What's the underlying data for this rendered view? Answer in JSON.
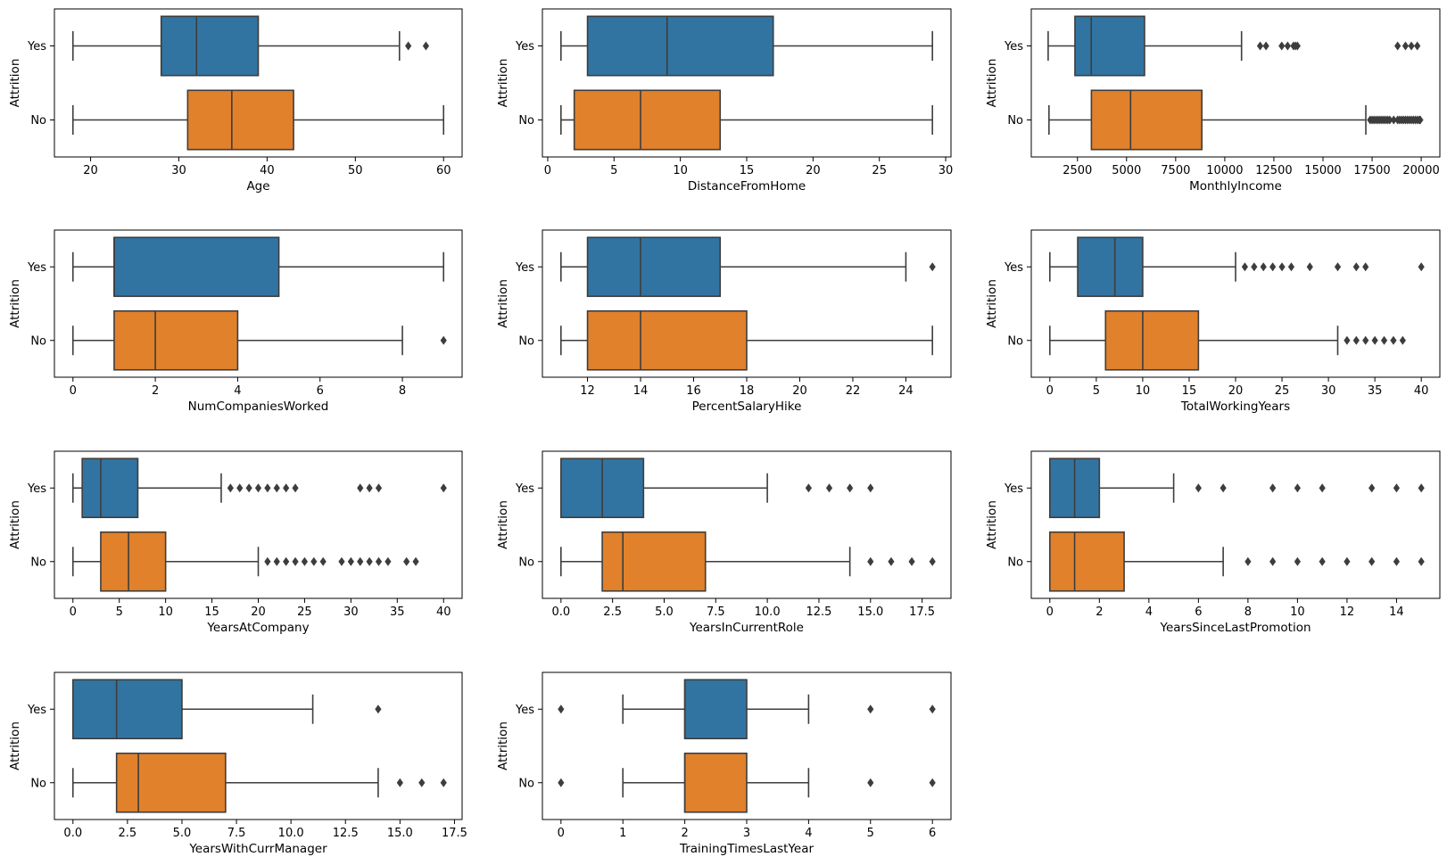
{
  "colors": {
    "yes": "#3274a1",
    "no": "#e1812c",
    "line": "#3d3d3d"
  },
  "chart_data": [
    {
      "type": "box",
      "orientation": "horizontal",
      "xlabel": "Age",
      "ylabel": "Attrition",
      "categories": [
        "Yes",
        "No"
      ],
      "xlim": [
        15.9,
        62.1
      ],
      "xticks": [
        20,
        30,
        40,
        50,
        60
      ],
      "series": [
        {
          "category": "Yes",
          "whisker_low": 18,
          "q1": 28,
          "median": 32,
          "q3": 39,
          "whisker_high": 55,
          "outliers": [
            56,
            58
          ]
        },
        {
          "category": "No",
          "whisker_low": 18,
          "q1": 31,
          "median": 36,
          "q3": 43,
          "whisker_high": 60,
          "outliers": []
        }
      ]
    },
    {
      "type": "box",
      "orientation": "horizontal",
      "xlabel": "DistanceFromHome",
      "ylabel": "Attrition",
      "categories": [
        "Yes",
        "No"
      ],
      "xlim": [
        -0.4,
        30.4
      ],
      "xticks": [
        0,
        5,
        10,
        15,
        20,
        25,
        30
      ],
      "series": [
        {
          "category": "Yes",
          "whisker_low": 1,
          "q1": 3,
          "median": 9,
          "q3": 17,
          "whisker_high": 29,
          "outliers": []
        },
        {
          "category": "No",
          "whisker_low": 1,
          "q1": 2,
          "median": 7,
          "q3": 13,
          "whisker_high": 29,
          "outliers": []
        }
      ]
    },
    {
      "type": "box",
      "orientation": "horizontal",
      "xlabel": "MonthlyIncome",
      "ylabel": "Attrition",
      "categories": [
        "Yes",
        "No"
      ],
      "xlim": [
        150,
        20950
      ],
      "xticks": [
        2500,
        5000,
        7500,
        10000,
        12500,
        15000,
        17500,
        20000
      ],
      "series": [
        {
          "category": "Yes",
          "whisker_low": 1009,
          "q1": 2373,
          "median": 3202,
          "q3": 5916,
          "whisker_high": 10854,
          "outliers": [
            11800,
            12100,
            12900,
            13200,
            13500,
            13600,
            13700,
            18800,
            19200,
            19500,
            19800
          ]
        },
        {
          "category": "No",
          "whisker_low": 1051,
          "q1": 3211,
          "median": 5204,
          "q3": 8834,
          "whisker_high": 17181,
          "outliers": [
            17400,
            17500,
            17600,
            17700,
            17800,
            17900,
            18000,
            18100,
            18200,
            18300,
            18400,
            18600,
            18800,
            18900,
            19000,
            19100,
            19200,
            19300,
            19400,
            19500,
            19600,
            19700,
            19800,
            19900,
            19950
          ]
        }
      ]
    },
    {
      "type": "box",
      "orientation": "horizontal",
      "xlabel": "NumCompaniesWorked",
      "ylabel": "Attrition",
      "categories": [
        "Yes",
        "No"
      ],
      "xlim": [
        -0.45,
        9.45
      ],
      "xticks": [
        0,
        2,
        4,
        6,
        8
      ],
      "series": [
        {
          "category": "Yes",
          "whisker_low": 0,
          "q1": 1,
          "median": 1,
          "q3": 5,
          "whisker_high": 9,
          "outliers": []
        },
        {
          "category": "No",
          "whisker_low": 0,
          "q1": 1,
          "median": 2,
          "q3": 4,
          "whisker_high": 8,
          "outliers": [
            9
          ]
        }
      ]
    },
    {
      "type": "box",
      "orientation": "horizontal",
      "xlabel": "PercentSalaryHike",
      "ylabel": "Attrition",
      "categories": [
        "Yes",
        "No"
      ],
      "xlim": [
        10.3,
        25.7
      ],
      "xticks": [
        12,
        14,
        16,
        18,
        20,
        22,
        24
      ],
      "series": [
        {
          "category": "Yes",
          "whisker_low": 11,
          "q1": 12,
          "median": 14,
          "q3": 17,
          "whisker_high": 24,
          "outliers": [
            25
          ]
        },
        {
          "category": "No",
          "whisker_low": 11,
          "q1": 12,
          "median": 14,
          "q3": 18,
          "whisker_high": 25,
          "outliers": []
        }
      ]
    },
    {
      "type": "box",
      "orientation": "horizontal",
      "xlabel": "TotalWorkingYears",
      "ylabel": "Attrition",
      "categories": [
        "Yes",
        "No"
      ],
      "xlim": [
        -2,
        42
      ],
      "xticks": [
        0,
        5,
        10,
        15,
        20,
        25,
        30,
        35,
        40
      ],
      "series": [
        {
          "category": "Yes",
          "whisker_low": 0,
          "q1": 3,
          "median": 7,
          "q3": 10,
          "whisker_high": 20,
          "outliers": [
            21,
            22,
            23,
            24,
            25,
            26,
            28,
            31,
            33,
            34,
            40
          ]
        },
        {
          "category": "No",
          "whisker_low": 0,
          "q1": 6,
          "median": 10,
          "q3": 16,
          "whisker_high": 31,
          "outliers": [
            32,
            33,
            34,
            35,
            36,
            37,
            38
          ]
        }
      ]
    },
    {
      "type": "box",
      "orientation": "horizontal",
      "xlabel": "YearsAtCompany",
      "ylabel": "Attrition",
      "categories": [
        "Yes",
        "No"
      ],
      "xlim": [
        -2,
        42
      ],
      "xticks": [
        0,
        5,
        10,
        15,
        20,
        25,
        30,
        35,
        40
      ],
      "series": [
        {
          "category": "Yes",
          "whisker_low": 0,
          "q1": 1,
          "median": 3,
          "q3": 7,
          "whisker_high": 16,
          "outliers": [
            17,
            18,
            19,
            20,
            21,
            22,
            23,
            24,
            31,
            32,
            33,
            40
          ]
        },
        {
          "category": "No",
          "whisker_low": 0,
          "q1": 3,
          "median": 6,
          "q3": 10,
          "whisker_high": 20,
          "outliers": [
            21,
            22,
            23,
            24,
            25,
            26,
            27,
            29,
            30,
            31,
            32,
            33,
            34,
            36,
            37
          ]
        }
      ]
    },
    {
      "type": "box",
      "orientation": "horizontal",
      "xlabel": "YearsInCurrentRole",
      "ylabel": "Attrition",
      "categories": [
        "Yes",
        "No"
      ],
      "xlim": [
        -0.9,
        18.9
      ],
      "xticks": [
        0.0,
        2.5,
        5.0,
        7.5,
        10.0,
        12.5,
        15.0,
        17.5
      ],
      "series": [
        {
          "category": "Yes",
          "whisker_low": 0,
          "q1": 0,
          "median": 2,
          "q3": 4,
          "whisker_high": 10,
          "outliers": [
            12,
            13,
            14,
            15
          ]
        },
        {
          "category": "No",
          "whisker_low": 0,
          "q1": 2,
          "median": 3,
          "q3": 7,
          "whisker_high": 14,
          "outliers": [
            15,
            16,
            17,
            18
          ]
        }
      ]
    },
    {
      "type": "box",
      "orientation": "horizontal",
      "xlabel": "YearsSinceLastPromotion",
      "ylabel": "Attrition",
      "categories": [
        "Yes",
        "No"
      ],
      "xlim": [
        -0.75,
        15.75
      ],
      "xticks": [
        0,
        2,
        4,
        6,
        8,
        10,
        12,
        14
      ],
      "series": [
        {
          "category": "Yes",
          "whisker_low": 0,
          "q1": 0,
          "median": 1,
          "q3": 2,
          "whisker_high": 5,
          "outliers": [
            6,
            7,
            9,
            10,
            11,
            13,
            14,
            15
          ]
        },
        {
          "category": "No",
          "whisker_low": 0,
          "q1": 0,
          "median": 1,
          "q3": 3,
          "whisker_high": 7,
          "outliers": [
            8,
            9,
            10,
            11,
            12,
            13,
            14,
            15
          ]
        }
      ]
    },
    {
      "type": "box",
      "orientation": "horizontal",
      "xlabel": "YearsWithCurrManager",
      "ylabel": "Attrition",
      "categories": [
        "Yes",
        "No"
      ],
      "xlim": [
        -0.85,
        17.85
      ],
      "xticks": [
        0.0,
        2.5,
        5.0,
        7.5,
        10.0,
        12.5,
        15.0,
        17.5
      ],
      "series": [
        {
          "category": "Yes",
          "whisker_low": 0,
          "q1": 0,
          "median": 2,
          "q3": 5,
          "whisker_high": 11,
          "outliers": [
            14
          ]
        },
        {
          "category": "No",
          "whisker_low": 0,
          "q1": 2,
          "median": 3,
          "q3": 7,
          "whisker_high": 14,
          "outliers": [
            15,
            16,
            17
          ]
        }
      ]
    },
    {
      "type": "box",
      "orientation": "horizontal",
      "xlabel": "TrainingTimesLastYear",
      "ylabel": "Attrition",
      "categories": [
        "Yes",
        "No"
      ],
      "xlim": [
        -0.3,
        6.3
      ],
      "xticks": [
        0,
        1,
        2,
        3,
        4,
        5,
        6
      ],
      "series": [
        {
          "category": "Yes",
          "whisker_low": 1,
          "q1": 2,
          "median": 2,
          "q3": 3,
          "whisker_high": 4,
          "outliers": [
            0,
            5,
            6
          ]
        },
        {
          "category": "No",
          "whisker_low": 1,
          "q1": 2,
          "median": 2,
          "q3": 3,
          "whisker_high": 4,
          "outliers": [
            0,
            5,
            6
          ]
        }
      ]
    }
  ]
}
